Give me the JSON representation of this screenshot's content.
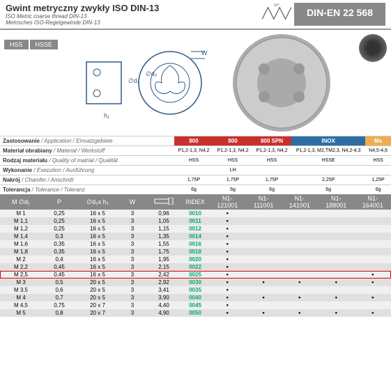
{
  "header": {
    "title": "Gwint metryczny zwykły ISO DIN-13",
    "subtitle1": "ISO Metric coarse thread DIN-13",
    "subtitle2": "Metrisches ISO-Regelgewinde DIN-13",
    "standard": "DIN-EN 22 568"
  },
  "tags": [
    "HSS",
    "HSSE"
  ],
  "diagram_labels": {
    "h1": "h₁",
    "d1": "∅d₁",
    "d2": "∅d₂",
    "w": "W",
    "angle": "60°"
  },
  "spec_rows": [
    {
      "label": "Zastosowanie",
      "sub": "/ Application / Einsatzgebiete"
    },
    {
      "label": "Materiał obrabiany",
      "sub": "/ Material / Werkstoff"
    },
    {
      "label": "Rodzaj materiału",
      "sub": "/ Quality of matrial / Qualität"
    },
    {
      "label": "Wykonanie",
      "sub": "/ Execution / Ausführung"
    },
    {
      "label": "Nakrój",
      "sub": "/ Chamfer / Anschnitt"
    },
    {
      "label": "Tolerancja",
      "sub": "/ Tolerance / Toleranz"
    }
  ],
  "variant_cols": [
    {
      "name": "800",
      "color": "#c9302c",
      "mat": "P1,2-1,3, N4,2",
      "qual": "HSS",
      "exec": "",
      "cham": "1,75P",
      "tol": "6g",
      "idx": "N1-121001"
    },
    {
      "name": "800",
      "color": "#c9302c",
      "mat": "P1,2-1,3, N4,2",
      "qual": "HSS",
      "exec": "LH",
      "cham": "1,75P",
      "tol": "6g",
      "idx": "N1-111001"
    },
    {
      "name": "800 SPN",
      "color": "#c9302c",
      "mat": "P1,2-1,3, N4,2",
      "qual": "HSS",
      "exec": "",
      "cham": "1,75P",
      "tol": "6g",
      "idx": "N1-141001"
    },
    {
      "name": "INOX",
      "color": "#2e6da4",
      "mat": "P1,2-1,3, M2,TM2,3, N4,2-4,3",
      "qual": "HSSE",
      "exec": "",
      "cham": "2,25P",
      "tol": "6g",
      "idx": "N1-188001"
    },
    {
      "name": "Ms",
      "color": "#f0ad4e",
      "mat": "N4,5-4,6",
      "qual": "HSS",
      "exec": "",
      "cham": "1,25P",
      "tol": "6g",
      "idx": "N1-164001"
    }
  ],
  "dim_headers": {
    "m": "M\n∅d₁",
    "p": "P",
    "d2h1": "∅d₂x h₁",
    "w": "W",
    "icon": "",
    "index": "INDEX"
  },
  "dim_rows": [
    {
      "m": "M 1",
      "p": "0,25",
      "d": "16 x 5",
      "w": "3",
      "l": "0,96",
      "idx": "0010",
      "dots": [
        1,
        0,
        0,
        0,
        0
      ],
      "hl": 0
    },
    {
      "m": "M 1,1",
      "p": "0,25",
      "d": "16 x 5",
      "w": "3",
      "l": "1,05",
      "idx": "0011",
      "dots": [
        1,
        0,
        0,
        0,
        0
      ],
      "hl": 0
    },
    {
      "m": "M 1,2",
      "p": "0,25",
      "d": "16 x 5",
      "w": "3",
      "l": "1,15",
      "idx": "0012",
      "dots": [
        1,
        0,
        0,
        0,
        0
      ],
      "hl": 0
    },
    {
      "m": "M 1,4",
      "p": "0,3",
      "d": "16 x 5",
      "w": "3",
      "l": "1,35",
      "idx": "0014",
      "dots": [
        1,
        0,
        0,
        0,
        0
      ],
      "hl": 0
    },
    {
      "m": "M 1,6",
      "p": "0,35",
      "d": "16 x 5",
      "w": "3",
      "l": "1,55",
      "idx": "0016",
      "dots": [
        1,
        0,
        0,
        0,
        0
      ],
      "hl": 0
    },
    {
      "m": "M 1,8",
      "p": "0,35",
      "d": "16 x 5",
      "w": "3",
      "l": "1,75",
      "idx": "0018",
      "dots": [
        1,
        0,
        0,
        0,
        0
      ],
      "hl": 0
    },
    {
      "m": "M 2",
      "p": "0,4",
      "d": "16 x 5",
      "w": "3",
      "l": "1,95",
      "idx": "0020",
      "dots": [
        1,
        0,
        0,
        0,
        0
      ],
      "hl": 0
    },
    {
      "m": "M 2,2",
      "p": "0,45",
      "d": "16 x 5",
      "w": "3",
      "l": "2,15",
      "idx": "0022",
      "dots": [
        1,
        0,
        0,
        0,
        0
      ],
      "hl": 0
    },
    {
      "m": "M 2,5",
      "p": "0,45",
      "d": "16 x 5",
      "w": "3",
      "l": "2,42",
      "idx": "0025",
      "dots": [
        1,
        0,
        0,
        0,
        1
      ],
      "hl": 1
    },
    {
      "m": "M 3",
      "p": "0,5",
      "d": "20 x 5",
      "w": "3",
      "l": "2,92",
      "idx": "0030",
      "dots": [
        1,
        1,
        1,
        1,
        1
      ],
      "hl": 0
    },
    {
      "m": "M 3,5",
      "p": "0,6",
      "d": "20 x 5",
      "w": "3",
      "l": "3,41",
      "idx": "0035",
      "dots": [
        1,
        0,
        0,
        0,
        0
      ],
      "hl": 0
    },
    {
      "m": "M 4",
      "p": "0,7",
      "d": "20 x 5",
      "w": "3",
      "l": "3,90",
      "idx": "0040",
      "dots": [
        1,
        1,
        1,
        1,
        1
      ],
      "hl": 0
    },
    {
      "m": "M 4,5",
      "p": "0,75",
      "d": "20 x 7",
      "w": "3",
      "l": "4,40",
      "idx": "0045",
      "dots": [
        1,
        0,
        0,
        0,
        0
      ],
      "hl": 0
    },
    {
      "m": "M 5",
      "p": "0,8",
      "d": "20 x 7",
      "w": "3",
      "l": "4,90",
      "idx": "0050",
      "dots": [
        1,
        1,
        1,
        1,
        1
      ],
      "hl": 0
    }
  ],
  "colors": {
    "header_bg": "#888",
    "highlight": "#d00",
    "index_text": "#0a6"
  }
}
